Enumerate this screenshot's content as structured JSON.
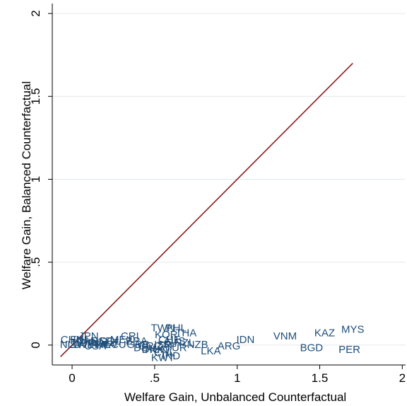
{
  "chart_data": {
    "type": "scatter",
    "xlabel": "Welfare Gain, Unbalanced Counterfactual",
    "ylabel": "Welfare Gain, Balanced Counterfactual",
    "xlim": [
      -0.12,
      2.02
    ],
    "ylim": [
      -0.12,
      2.06
    ],
    "x_ticks": [
      {
        "value": 0,
        "label": "0"
      },
      {
        "value": 0.5,
        "label": ".5"
      },
      {
        "value": 1,
        "label": "1"
      },
      {
        "value": 1.5,
        "label": "1.5"
      },
      {
        "value": 2,
        "label": "2"
      }
    ],
    "y_ticks": [
      {
        "value": 0,
        "label": "0"
      },
      {
        "value": 0.5,
        "label": ".5"
      },
      {
        "value": 1,
        "label": "1"
      },
      {
        "value": 1.5,
        "label": "1.5"
      },
      {
        "value": 2,
        "label": "2"
      }
    ],
    "grid": "horizontal",
    "reference_line": {
      "x": [
        -0.07,
        1.7
      ],
      "y": [
        -0.07,
        1.7
      ],
      "color": "#8b1a1a"
    },
    "label_color": "#1f4e79",
    "points": [
      {
        "label": "MYS",
        "x": 1.7,
        "y": 0.09
      },
      {
        "label": "KAZ",
        "x": 1.53,
        "y": 0.07
      },
      {
        "label": "VNM",
        "x": 1.29,
        "y": 0.05
      },
      {
        "label": "IDN",
        "x": 1.05,
        "y": 0.03
      },
      {
        "label": "ARG",
        "x": 0.95,
        "y": -0.01
      },
      {
        "label": "BGD",
        "x": 1.45,
        "y": -0.02
      },
      {
        "label": "PER",
        "x": 1.68,
        "y": -0.03
      },
      {
        "label": "LKA",
        "x": 0.84,
        "y": -0.04
      },
      {
        "label": "TWN",
        "x": 0.55,
        "y": 0.1
      },
      {
        "label": "PHL",
        "x": 0.63,
        "y": 0.1
      },
      {
        "label": "THA",
        "x": 0.69,
        "y": 0.07
      },
      {
        "label": "KOR",
        "x": 0.57,
        "y": 0.06
      },
      {
        "label": "CHE",
        "x": 0.59,
        "y": 0.03
      },
      {
        "label": "AUS",
        "x": 0.62,
        "y": 0.02
      },
      {
        "label": "NZL",
        "x": 0.68,
        "y": 0.01
      },
      {
        "label": "NZB",
        "x": 0.76,
        "y": -0.0
      },
      {
        "label": "ISR",
        "x": 0.55,
        "y": 0.0
      },
      {
        "label": "GRC",
        "x": 0.47,
        "y": -0.01
      },
      {
        "label": "GBR",
        "x": 0.4,
        "y": 0.0
      },
      {
        "label": "DEU",
        "x": 0.44,
        "y": -0.02
      },
      {
        "label": "DNK",
        "x": 0.49,
        "y": -0.03
      },
      {
        "label": "ZAF",
        "x": 0.57,
        "y": -0.01
      },
      {
        "label": "HUN",
        "x": 0.51,
        "y": -0.03
      },
      {
        "label": "TUR",
        "x": 0.63,
        "y": -0.02
      },
      {
        "label": "CHL",
        "x": 0.56,
        "y": -0.05
      },
      {
        "label": "IND",
        "x": 0.6,
        "y": -0.07
      },
      {
        "label": "KWT",
        "x": 0.55,
        "y": -0.08
      },
      {
        "label": "BRA",
        "x": 0.39,
        "y": 0.02
      },
      {
        "label": "CRI",
        "x": 0.35,
        "y": 0.05
      },
      {
        "label": "MEX",
        "x": 0.3,
        "y": 0.03
      },
      {
        "label": "COL",
        "x": 0.23,
        "y": 0.02
      },
      {
        "label": "ECU",
        "x": 0.26,
        "y": 0.0
      },
      {
        "label": "ESP",
        "x": 0.18,
        "y": 0.02
      },
      {
        "label": "FRA",
        "x": 0.2,
        "y": 0.0
      },
      {
        "label": "ITA",
        "x": 0.16,
        "y": 0.0
      },
      {
        "label": "USA",
        "x": 0.14,
        "y": -0.01
      },
      {
        "label": "JPN",
        "x": 0.1,
        "y": 0.05
      },
      {
        "label": "CAN",
        "x": 0.09,
        "y": 0.02
      },
      {
        "label": "NOR",
        "x": 0.07,
        "y": 0.01
      },
      {
        "label": "SWE",
        "x": 0.06,
        "y": 0.0
      },
      {
        "label": "FIN",
        "x": 0.04,
        "y": 0.03
      },
      {
        "label": "CHN",
        "x": 0.0,
        "y": 0.03
      },
      {
        "label": "NLD",
        "x": -0.01,
        "y": 0.0
      },
      {
        "label": "POL",
        "x": 0.12,
        "y": 0.01
      },
      {
        "label": "AUT",
        "x": 0.22,
        "y": 0.01
      }
    ]
  }
}
